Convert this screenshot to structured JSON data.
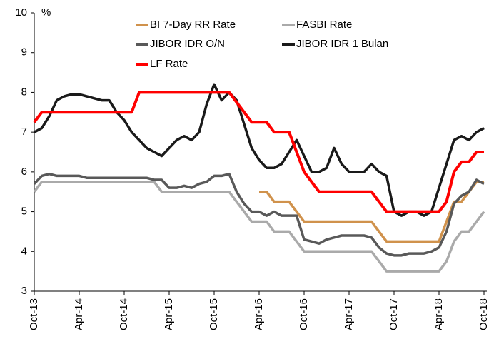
{
  "chart_data": {
    "type": "line",
    "ylabel": "%",
    "categories": [
      "Oct-13",
      null,
      null,
      null,
      null,
      null,
      "Apr-14",
      null,
      null,
      null,
      null,
      null,
      "Oct-14",
      null,
      null,
      null,
      null,
      null,
      "Apr-15",
      null,
      null,
      null,
      null,
      null,
      "Oct-15",
      null,
      null,
      null,
      null,
      null,
      "Apr-16",
      null,
      null,
      null,
      null,
      null,
      "Oct-16",
      null,
      null,
      null,
      null,
      null,
      "Apr-17",
      null,
      null,
      null,
      null,
      null,
      "Oct-17",
      null,
      null,
      null,
      null,
      null,
      "Apr-18",
      null,
      null,
      null,
      null,
      null,
      "Oct-18"
    ],
    "ylim": [
      3,
      10
    ],
    "yticks": [
      3,
      4,
      5,
      6,
      7,
      8,
      9,
      10
    ],
    "series": [
      {
        "name": "BI 7-Day RR Rate",
        "color": "#d0924c",
        "values": [
          null,
          null,
          null,
          null,
          null,
          null,
          null,
          null,
          null,
          null,
          null,
          null,
          null,
          null,
          null,
          null,
          null,
          null,
          null,
          null,
          null,
          null,
          null,
          null,
          null,
          null,
          null,
          null,
          null,
          null,
          5.5,
          5.5,
          5.25,
          5.25,
          5.25,
          5.0,
          4.75,
          4.75,
          4.75,
          4.75,
          4.75,
          4.75,
          4.75,
          4.75,
          4.75,
          4.75,
          4.5,
          4.25,
          4.25,
          4.25,
          4.25,
          4.25,
          4.25,
          4.25,
          4.25,
          4.75,
          5.25,
          5.25,
          5.5,
          5.75,
          5.75
        ]
      },
      {
        "name": "FASBI Rate",
        "color": "#aaaaaa",
        "values": [
          5.5,
          5.75,
          5.75,
          5.75,
          5.75,
          5.75,
          5.75,
          5.75,
          5.75,
          5.75,
          5.75,
          5.75,
          5.75,
          5.75,
          5.75,
          5.75,
          5.75,
          5.5,
          5.5,
          5.5,
          5.5,
          5.5,
          5.5,
          5.5,
          5.5,
          5.5,
          5.5,
          5.25,
          5.0,
          4.75,
          4.75,
          4.75,
          4.5,
          4.5,
          4.5,
          4.25,
          4.0,
          4.0,
          4.0,
          4.0,
          4.0,
          4.0,
          4.0,
          4.0,
          4.0,
          4.0,
          3.75,
          3.5,
          3.5,
          3.5,
          3.5,
          3.5,
          3.5,
          3.5,
          3.5,
          3.75,
          4.25,
          4.5,
          4.5,
          4.75,
          5.0
        ]
      },
      {
        "name": "JIBOR IDR O/N",
        "color": "#595959",
        "values": [
          5.7,
          5.9,
          5.95,
          5.9,
          5.9,
          5.9,
          5.9,
          5.85,
          5.85,
          5.85,
          5.85,
          5.85,
          5.85,
          5.85,
          5.85,
          5.85,
          5.8,
          5.8,
          5.6,
          5.6,
          5.65,
          5.6,
          5.7,
          5.75,
          5.9,
          5.9,
          5.95,
          5.5,
          5.2,
          5.0,
          5.0,
          4.9,
          5.0,
          4.9,
          4.9,
          4.9,
          4.3,
          4.25,
          4.2,
          4.3,
          4.35,
          4.4,
          4.4,
          4.4,
          4.4,
          4.35,
          4.1,
          3.95,
          3.9,
          3.9,
          3.95,
          3.95,
          3.95,
          4.0,
          4.1,
          4.5,
          5.2,
          5.4,
          5.5,
          5.8,
          5.7
        ]
      },
      {
        "name": "JIBOR IDR 1 Bulan",
        "color": "#1a1a1a",
        "values": [
          7.0,
          7.1,
          7.4,
          7.8,
          7.9,
          7.95,
          7.95,
          7.9,
          7.85,
          7.8,
          7.8,
          7.5,
          7.3,
          7.0,
          6.8,
          6.6,
          6.5,
          6.4,
          6.6,
          6.8,
          6.9,
          6.8,
          7.0,
          7.7,
          8.2,
          7.8,
          8.0,
          7.8,
          7.2,
          6.6,
          6.3,
          6.1,
          6.1,
          6.2,
          6.5,
          6.8,
          6.4,
          6.0,
          6.0,
          6.1,
          6.6,
          6.2,
          6.0,
          6.0,
          6.0,
          6.2,
          6.0,
          5.9,
          5.0,
          4.9,
          5.0,
          5.0,
          4.9,
          5.0,
          5.6,
          6.2,
          6.8,
          6.9,
          6.8,
          7.0,
          7.1
        ]
      },
      {
        "name": "LF Rate",
        "color": "#ff0000",
        "values": [
          7.25,
          7.5,
          7.5,
          7.5,
          7.5,
          7.5,
          7.5,
          7.5,
          7.5,
          7.5,
          7.5,
          7.5,
          7.5,
          7.5,
          8.0,
          8.0,
          8.0,
          8.0,
          8.0,
          8.0,
          8.0,
          8.0,
          8.0,
          8.0,
          8.0,
          8.0,
          8.0,
          7.75,
          7.5,
          7.25,
          7.25,
          7.25,
          7.0,
          7.0,
          7.0,
          6.5,
          6.0,
          5.75,
          5.5,
          5.5,
          5.5,
          5.5,
          5.5,
          5.5,
          5.5,
          5.5,
          5.25,
          5.0,
          5.0,
          5.0,
          5.0,
          5.0,
          5.0,
          5.0,
          5.0,
          5.25,
          6.0,
          6.25,
          6.25,
          6.5,
          6.5
        ]
      }
    ]
  }
}
